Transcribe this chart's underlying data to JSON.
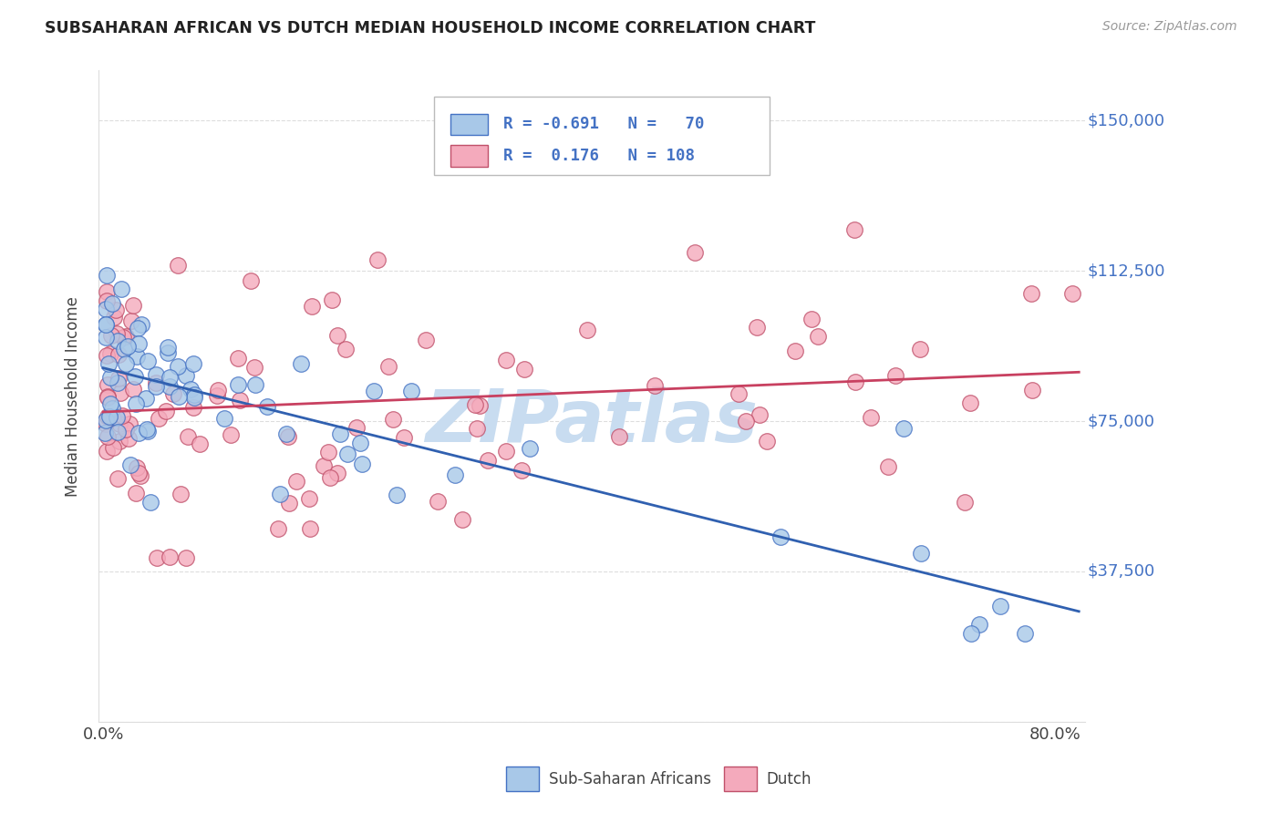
{
  "title": "SUBSAHARAN AFRICAN VS DUTCH MEDIAN HOUSEHOLD INCOME CORRELATION CHART",
  "source": "Source: ZipAtlas.com",
  "ylabel": "Median Household Income",
  "yticks": [
    0,
    37500,
    75000,
    112500,
    150000
  ],
  "ytick_labels": [
    "",
    "$37,500",
    "$75,000",
    "$112,500",
    "$150,000"
  ],
  "ymax": 162500,
  "ymin": 15000,
  "xmin": -0.004,
  "xmax": 0.825,
  "blue_fill": "#A8C8E8",
  "blue_edge": "#4472C4",
  "pink_fill": "#F4AABC",
  "pink_edge": "#C0506A",
  "blue_line": "#3060B0",
  "pink_line": "#C84060",
  "watermark": "ZIPatlas",
  "watermark_color": "#C8DCF0",
  "legend_R_blue": "R = -0.691",
  "legend_N_blue": "N =  70",
  "legend_R_pink": "R =  0.176",
  "legend_N_pink": "N = 108",
  "label_blue": "Sub-Saharan Africans",
  "label_pink": "Dutch",
  "grid_color": "#DDDDDD",
  "title_color": "#222222",
  "axis_label_color": "#444444",
  "tick_label_color": "#4472C4"
}
